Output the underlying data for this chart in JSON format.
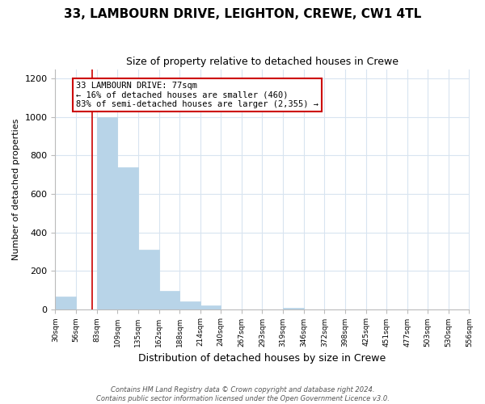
{
  "title": "33, LAMBOURN DRIVE, LEIGHTON, CREWE, CW1 4TL",
  "subtitle": "Size of property relative to detached houses in Crewe",
  "xlabel": "Distribution of detached houses by size in Crewe",
  "ylabel": "Number of detached properties",
  "bin_edges": [
    30,
    56,
    83,
    109,
    135,
    162,
    188,
    214,
    240,
    267,
    293,
    319,
    346,
    372,
    398,
    425,
    451,
    477,
    503,
    530,
    556
  ],
  "bar_heights": [
    65,
    0,
    1000,
    740,
    310,
    95,
    40,
    18,
    0,
    0,
    0,
    5,
    0,
    0,
    0,
    0,
    0,
    0,
    0,
    0
  ],
  "bar_color": "#b8d4e8",
  "reference_line_x": 77,
  "reference_line_color": "#cc0000",
  "annotation_line1": "33 LAMBOURN DRIVE: 77sqm",
  "annotation_line2": "← 16% of detached houses are smaller (460)",
  "annotation_line3": "83% of semi-detached houses are larger (2,355) →",
  "ylim": [
    0,
    1250
  ],
  "yticks": [
    0,
    200,
    400,
    600,
    800,
    1000,
    1200
  ],
  "tick_labels": [
    "30sqm",
    "56sqm",
    "83sqm",
    "109sqm",
    "135sqm",
    "162sqm",
    "188sqm",
    "214sqm",
    "240sqm",
    "267sqm",
    "293sqm",
    "319sqm",
    "346sqm",
    "372sqm",
    "398sqm",
    "425sqm",
    "451sqm",
    "477sqm",
    "503sqm",
    "530sqm",
    "556sqm"
  ],
  "footer_line1": "Contains HM Land Registry data © Crown copyright and database right 2024.",
  "footer_line2": "Contains public sector information licensed under the Open Government Licence v3.0.",
  "background_color": "#ffffff",
  "annotation_box_facecolor": "#ffffff",
  "annotation_box_edgecolor": "#cc0000",
  "grid_color": "#d8e4f0",
  "title_fontsize": 11,
  "subtitle_fontsize": 9
}
